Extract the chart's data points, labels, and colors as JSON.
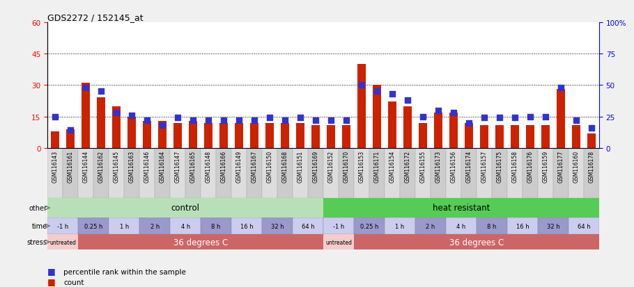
{
  "title": "GDS2272 / 152145_at",
  "samples": [
    "GSM116143",
    "GSM116161",
    "GSM116144",
    "GSM116162",
    "GSM116145",
    "GSM116163",
    "GSM116146",
    "GSM116164",
    "GSM116147",
    "GSM116165",
    "GSM116148",
    "GSM116166",
    "GSM116149",
    "GSM116167",
    "GSM116150",
    "GSM116168",
    "GSM116151",
    "GSM116169",
    "GSM116152",
    "GSM116170",
    "GSM116153",
    "GSM116171",
    "GSM116154",
    "GSM116172",
    "GSM116155",
    "GSM116173",
    "GSM116156",
    "GSM116174",
    "GSM116157",
    "GSM116175",
    "GSM116158",
    "GSM116176",
    "GSM116159",
    "GSM116177",
    "GSM116160",
    "GSM116178"
  ],
  "counts": [
    8,
    9,
    31,
    24,
    20,
    15,
    13,
    13,
    12,
    13,
    12,
    12,
    12,
    12,
    12,
    12,
    12,
    11,
    11,
    11,
    40,
    30,
    22,
    20,
    12,
    17,
    17,
    12,
    11,
    11,
    11,
    11,
    11,
    28,
    11,
    7
  ],
  "percentiles": [
    25,
    14,
    48,
    45,
    28,
    26,
    22,
    18,
    24,
    22,
    22,
    22,
    22,
    22,
    24,
    22,
    24,
    22,
    22,
    22,
    50,
    45,
    43,
    38,
    25,
    30,
    28,
    20,
    24,
    24,
    24,
    25,
    25,
    48,
    22,
    16
  ],
  "bar_color": "#cc2200",
  "dot_color": "#3333cc",
  "ylim_left": [
    0,
    60
  ],
  "ylim_right": [
    0,
    100
  ],
  "yticks_left": [
    0,
    15,
    30,
    45,
    60
  ],
  "yticks_right": [
    0,
    25,
    50,
    75,
    100
  ],
  "hlines": [
    15,
    30,
    45
  ],
  "bar_width": 0.55,
  "dot_size": 30,
  "background_color": "#f0f0f0",
  "plot_bg": "#ffffff",
  "group_labels": [
    "control",
    "heat resistant"
  ],
  "group_color_light": "#b8e0b8",
  "group_color_dark": "#55cc55",
  "time_labels": [
    "-1 h",
    "0.25 h",
    "1 h",
    "2 h",
    "4 h",
    "8 h",
    "16 h",
    "32 h",
    "64 h"
  ],
  "time_color_light": "#ccccee",
  "time_color_dark": "#9999cc",
  "stress_untreated_color": "#f5cccc",
  "stress_treated_color": "#cc6666",
  "row_label_bg": "#dddddd",
  "xtick_bg": "#cccccc",
  "legend_count_label": "count",
  "legend_pct_label": "percentile rank within the sample"
}
